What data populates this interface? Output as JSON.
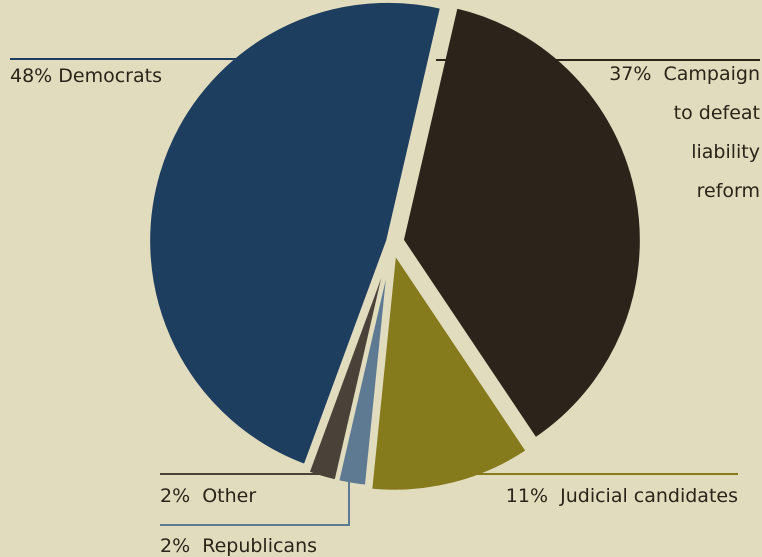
{
  "chart_data": {
    "type": "pie",
    "title": "",
    "slices": [
      {
        "label": "Campaign to defeat liability reform",
        "value": 37,
        "color": "#2c241a",
        "text_lines": [
          "37%  Campaign",
          "to defeat",
          "liability",
          "reform"
        ]
      },
      {
        "label": "Judicial candidates",
        "value": 11,
        "color": "#857b1c",
        "text_lines": [
          "11%  Judicial candidates"
        ]
      },
      {
        "label": "Republicans",
        "value": 2,
        "color": "#5e7a93",
        "text_lines": [
          "2%  Republicans"
        ]
      },
      {
        "label": "Other",
        "value": 2,
        "color": "#4a4238",
        "text_lines": [
          "2%  Other"
        ]
      },
      {
        "label": "Democrats",
        "value": 48,
        "color": "#1e3e5f",
        "text_lines": [
          "48% Democrats"
        ]
      }
    ]
  }
}
